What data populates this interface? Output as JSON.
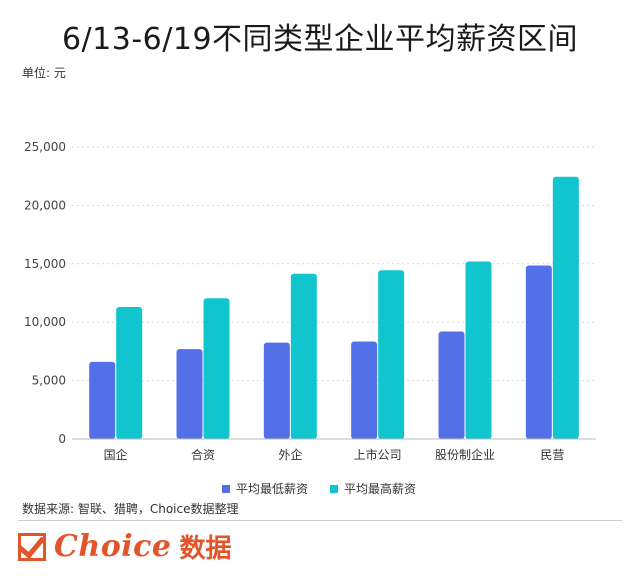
{
  "header": {
    "title": "6/13-6/19不同类型企业平均薪资区间",
    "unit": "单位: 元"
  },
  "colors": {
    "series_low": "#5470e8",
    "series_high": "#11c5cf"
  },
  "chart_data": {
    "type": "bar",
    "categories": [
      "国企",
      "合资",
      "外企",
      "上市公司",
      "股份制企业",
      "民营"
    ],
    "series": [
      {
        "name": "平均最低薪资",
        "values": [
          6600,
          7700,
          8250,
          8350,
          9200,
          14850
        ]
      },
      {
        "name": "平均最高薪资",
        "values": [
          11300,
          12050,
          14150,
          14450,
          15200,
          22450
        ]
      }
    ],
    "yticks": [
      0,
      5000,
      10000,
      15000,
      20000,
      25000
    ],
    "ytick_labels": [
      "0",
      "5,000",
      "10,000",
      "15,000",
      "20,000",
      "25,000"
    ],
    "ylim": [
      0,
      25000
    ],
    "grid": true,
    "legend_position": "bottom"
  },
  "footer": {
    "source": "数据来源: 智联、猎聘，Choice数据整理",
    "logo_text": "Choice",
    "logo_suffix": "数据"
  }
}
